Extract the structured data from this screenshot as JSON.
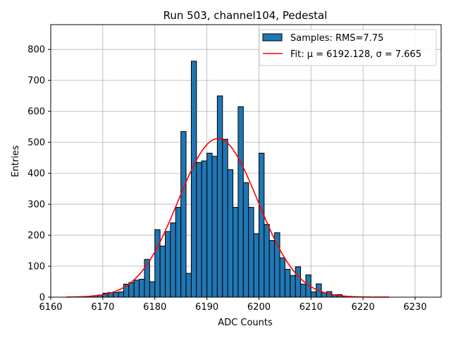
{
  "chart_data": {
    "type": "bar",
    "title": "Run 503, channel104, Pedestal",
    "xlabel": "ADC Counts",
    "ylabel": "Entries",
    "xlim": [
      6160,
      6235
    ],
    "ylim": [
      0,
      880
    ],
    "xticks": [
      6160,
      6170,
      6180,
      6190,
      6200,
      6210,
      6220,
      6230
    ],
    "yticks": [
      0,
      100,
      200,
      300,
      400,
      500,
      600,
      700,
      800
    ],
    "grid": true,
    "legend_position": "top-right",
    "colors": {
      "bar": "#1f77b4",
      "fit": "#ff0000",
      "grid": "#b0b0b0"
    },
    "series": [
      {
        "name": "Samples: RMS=7.75",
        "kind": "histogram",
        "bin_width": 1,
        "bins": [
          [
            6167,
            3
          ],
          [
            6168,
            5
          ],
          [
            6169,
            7
          ],
          [
            6170,
            13
          ],
          [
            6171,
            15
          ],
          [
            6172,
            15
          ],
          [
            6173,
            17
          ],
          [
            6174,
            42
          ],
          [
            6175,
            47
          ],
          [
            6176,
            55
          ],
          [
            6177,
            58
          ],
          [
            6178,
            122
          ],
          [
            6179,
            50
          ],
          [
            6180,
            218
          ],
          [
            6181,
            165
          ],
          [
            6182,
            212
          ],
          [
            6183,
            240
          ],
          [
            6184,
            290
          ],
          [
            6185,
            535
          ],
          [
            6186,
            77
          ],
          [
            6187,
            762
          ],
          [
            6188,
            435
          ],
          [
            6189,
            440
          ],
          [
            6190,
            465
          ],
          [
            6191,
            455
          ],
          [
            6192,
            650
          ],
          [
            6193,
            510
          ],
          [
            6194,
            412
          ],
          [
            6195,
            290
          ],
          [
            6196,
            615
          ],
          [
            6197,
            370
          ],
          [
            6198,
            290
          ],
          [
            6199,
            205
          ],
          [
            6200,
            465
          ],
          [
            6201,
            235
          ],
          [
            6202,
            183
          ],
          [
            6203,
            208
          ],
          [
            6204,
            127
          ],
          [
            6205,
            90
          ],
          [
            6206,
            70
          ],
          [
            6207,
            98
          ],
          [
            6208,
            42
          ],
          [
            6209,
            72
          ],
          [
            6210,
            17
          ],
          [
            6211,
            43
          ],
          [
            6212,
            15
          ],
          [
            6213,
            18
          ],
          [
            6214,
            8
          ],
          [
            6215,
            8
          ],
          [
            6216,
            3
          ],
          [
            6217,
            2
          ]
        ]
      },
      {
        "name": "Fit: μ = 6192.128, σ = 7.665",
        "kind": "gaussian_fit",
        "mu": 6192.128,
        "sigma": 7.665,
        "amplitude": 512,
        "x_range": [
          6163,
          6225
        ]
      }
    ]
  }
}
